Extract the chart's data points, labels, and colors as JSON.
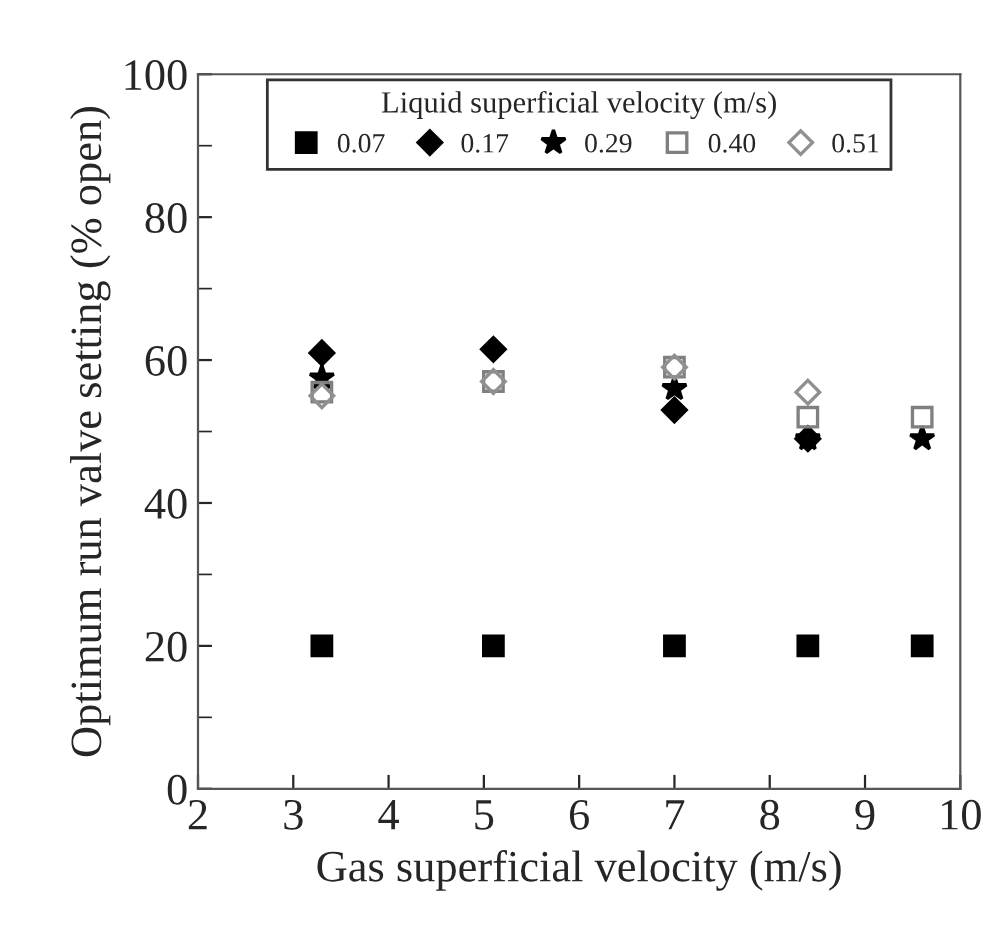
{
  "chart_data": {
    "type": "scatter",
    "xlabel": "Gas superficial velocity (m/s)",
    "ylabel": "Optimum run valve setting (% open)",
    "legend_title": "Liquid superficial velocity (m/s)",
    "legend": "top",
    "x": [
      3.3,
      5.1,
      7.0,
      8.4,
      9.6
    ],
    "xlim": [
      2,
      10
    ],
    "xticks": [
      2,
      3,
      4,
      5,
      6,
      7,
      8,
      9,
      10
    ],
    "ylim": [
      0,
      100
    ],
    "yticks": [
      0,
      20,
      40,
      60,
      80,
      100
    ],
    "grid": false,
    "series": [
      {
        "name": "0.07",
        "color": "#000000",
        "marker": "square",
        "values": [
          20,
          20,
          20,
          20,
          20
        ]
      },
      {
        "name": "0.17",
        "color": "#000000",
        "marker": "diamond",
        "values": [
          61,
          61.5,
          53,
          49,
          null
        ]
      },
      {
        "name": "0.29",
        "color": "#000000",
        "marker": "star",
        "values": [
          57.5,
          null,
          56,
          49,
          49
        ]
      },
      {
        "name": "0.40",
        "color": "#808080",
        "marker": "square",
        "values": [
          55.5,
          57,
          59,
          52,
          52
        ]
      },
      {
        "name": "0.51",
        "color": "#909090",
        "marker": "diamond",
        "values": [
          55,
          57,
          59,
          55.5,
          null
        ]
      }
    ]
  }
}
